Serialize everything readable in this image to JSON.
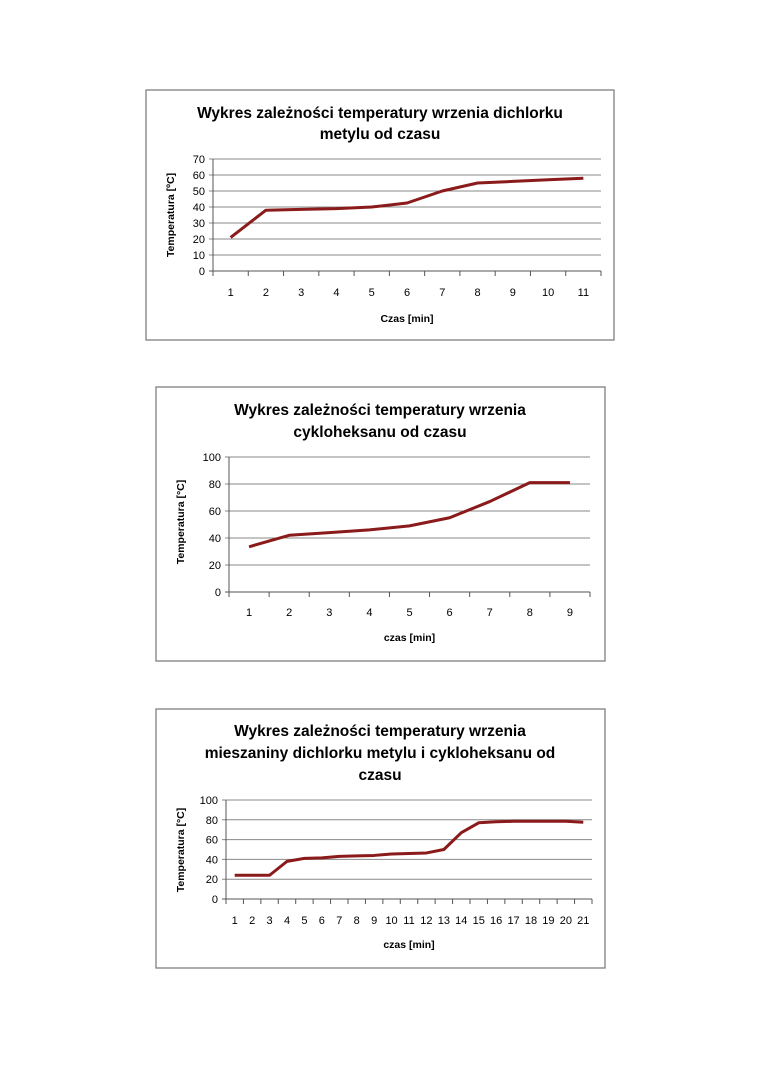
{
  "colors": {
    "line": "#8b1a1a",
    "grid": "#888888",
    "frame": "#7f7f7f"
  },
  "chart_data": [
    {
      "type": "line",
      "title_lines": [
        "Wykres zależności temperatury wrzenia dichlorku",
        "metylu od czasu"
      ],
      "xlabel": "Czas [min]",
      "ylabel": "Temperatura [ºC]",
      "categories": [
        "1",
        "2",
        "3",
        "4",
        "5",
        "6",
        "7",
        "8",
        "9",
        "10",
        "11"
      ],
      "values": [
        21,
        38,
        38.5,
        39,
        40,
        42.5,
        50,
        55,
        56,
        57,
        58
      ],
      "yticks": [
        "0",
        "10",
        "20",
        "30",
        "40",
        "50",
        "60",
        "70"
      ],
      "ylim": [
        0,
        70
      ],
      "grid": true,
      "legend": "none"
    },
    {
      "type": "line",
      "title_lines": [
        "Wykres zależności temperatury wrzenia",
        "cykloheksanu od czasu"
      ],
      "xlabel": "czas [min]",
      "ylabel": "Temperatura [°C]",
      "categories": [
        "1",
        "2",
        "3",
        "4",
        "5",
        "6",
        "7",
        "8",
        "9"
      ],
      "values": [
        33.5,
        42,
        44,
        46,
        49,
        55,
        67,
        81,
        81
      ],
      "yticks": [
        "0",
        "20",
        "40",
        "60",
        "80",
        "100"
      ],
      "ylim": [
        0,
        100
      ],
      "grid": true,
      "legend": "none"
    },
    {
      "type": "line",
      "title_lines": [
        "Wykres zależności temperatury wrzenia",
        "mieszaniny dichlorku metylu i cykloheksanu od",
        "czasu"
      ],
      "xlabel": "czas [min]",
      "ylabel": "Temperatura [°C]",
      "categories": [
        "1",
        "2",
        "3",
        "4",
        "5",
        "6",
        "7",
        "8",
        "9",
        "10",
        "11",
        "12",
        "13",
        "14",
        "15",
        "16",
        "17",
        "18",
        "19",
        "20",
        "21"
      ],
      "values": [
        24,
        24,
        24,
        38,
        41,
        41.5,
        43,
        43.5,
        44,
        45.5,
        46,
        46.5,
        50,
        67,
        77,
        78,
        78.5,
        78.5,
        78.5,
        78.5,
        77.5
      ],
      "yticks": [
        "0",
        "20",
        "40",
        "60",
        "80",
        "100"
      ],
      "ylim": [
        0,
        100
      ],
      "grid": true,
      "legend": "none"
    }
  ]
}
